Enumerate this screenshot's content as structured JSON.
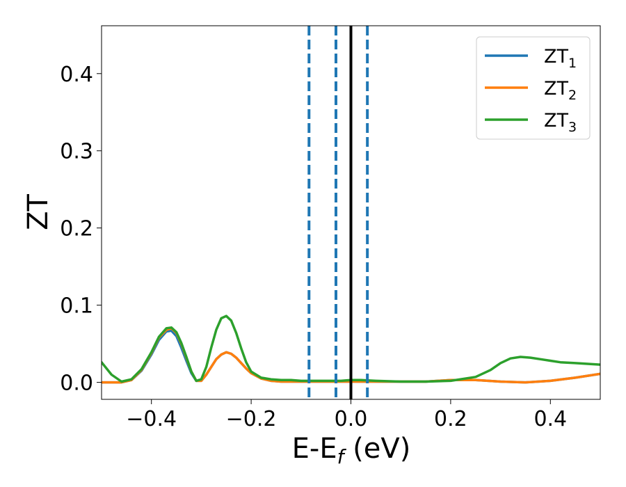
{
  "chart_data": {
    "type": "line",
    "title": "",
    "xlabel": {
      "main": "E-E",
      "sub": "f",
      "rest": " (eV)"
    },
    "ylabel": "ZT",
    "xlim": [
      -0.5,
      0.5
    ],
    "ylim": [
      -0.022,
      0.462
    ],
    "xticks": [
      {
        "value": -0.4,
        "label": "−0.4"
      },
      {
        "value": -0.2,
        "label": "−0.2"
      },
      {
        "value": 0.0,
        "label": "0.0"
      },
      {
        "value": 0.2,
        "label": "0.2"
      },
      {
        "value": 0.4,
        "label": "0.4"
      }
    ],
    "yticks": [
      {
        "value": 0.0,
        "label": "0.0"
      },
      {
        "value": 0.1,
        "label": "0.1"
      },
      {
        "value": 0.2,
        "label": "0.2"
      },
      {
        "value": 0.3,
        "label": "0.3"
      },
      {
        "value": 0.4,
        "label": "0.4"
      }
    ],
    "grid": false,
    "legend_position": "top-right",
    "vlines": [
      {
        "x": -0.084,
        "style": "dashed",
        "color": "#1f77b4"
      },
      {
        "x": -0.03,
        "style": "dashed",
        "color": "#1f77b4"
      },
      {
        "x": 0.0,
        "style": "solid",
        "color": "#000000"
      },
      {
        "x": 0.033,
        "style": "dashed",
        "color": "#1f77b4"
      }
    ],
    "series": [
      {
        "name": "ZT",
        "sub": "1",
        "color": "#1f77b4",
        "x": [
          -0.5,
          -0.48,
          -0.46,
          -0.44,
          -0.42,
          -0.4,
          -0.385,
          -0.37,
          -0.36,
          -0.35,
          -0.34,
          -0.33,
          -0.32,
          -0.31,
          -0.3,
          -0.29,
          -0.28,
          -0.27,
          -0.26,
          -0.25,
          -0.24,
          -0.23,
          -0.22,
          -0.21,
          -0.2,
          -0.18,
          -0.16,
          -0.14,
          -0.12,
          -0.1,
          -0.08,
          -0.06,
          -0.04,
          -0.02,
          0.0,
          0.05,
          0.1,
          0.15,
          0.2,
          0.25,
          0.3,
          0.35,
          0.4,
          0.45,
          0.5
        ],
        "y": [
          0.0,
          0.0,
          0.0,
          0.003,
          0.015,
          0.036,
          0.055,
          0.066,
          0.067,
          0.06,
          0.045,
          0.028,
          0.012,
          0.002,
          0.002,
          0.01,
          0.02,
          0.03,
          0.036,
          0.039,
          0.037,
          0.032,
          0.025,
          0.018,
          0.012,
          0.005,
          0.002,
          0.001,
          0.001,
          0.001,
          0.001,
          0.001,
          0.001,
          0.001,
          0.001,
          0.001,
          0.001,
          0.001,
          0.003,
          0.003,
          0.001,
          0.0,
          0.002,
          0.006,
          0.011
        ]
      },
      {
        "name": "ZT",
        "sub": "2",
        "color": "#ff7f0e",
        "x": [
          -0.5,
          -0.48,
          -0.46,
          -0.44,
          -0.42,
          -0.4,
          -0.385,
          -0.37,
          -0.36,
          -0.35,
          -0.34,
          -0.33,
          -0.32,
          -0.31,
          -0.3,
          -0.29,
          -0.28,
          -0.27,
          -0.26,
          -0.25,
          -0.24,
          -0.23,
          -0.22,
          -0.21,
          -0.2,
          -0.18,
          -0.16,
          -0.14,
          -0.12,
          -0.1,
          -0.08,
          -0.06,
          -0.04,
          -0.02,
          0.0,
          0.05,
          0.1,
          0.15,
          0.2,
          0.25,
          0.3,
          0.35,
          0.4,
          0.45,
          0.5
        ],
        "y": [
          0.0,
          0.0,
          0.0,
          0.003,
          0.016,
          0.038,
          0.058,
          0.068,
          0.07,
          0.064,
          0.05,
          0.032,
          0.014,
          0.002,
          0.002,
          0.01,
          0.02,
          0.03,
          0.036,
          0.039,
          0.037,
          0.032,
          0.025,
          0.018,
          0.012,
          0.005,
          0.002,
          0.001,
          0.001,
          0.001,
          0.001,
          0.001,
          0.001,
          0.001,
          0.001,
          0.001,
          0.001,
          0.001,
          0.003,
          0.003,
          0.001,
          0.0,
          0.002,
          0.006,
          0.011
        ]
      },
      {
        "name": "ZT",
        "sub": "3",
        "color": "#2ca02c",
        "x": [
          -0.5,
          -0.48,
          -0.46,
          -0.44,
          -0.42,
          -0.4,
          -0.385,
          -0.37,
          -0.36,
          -0.35,
          -0.34,
          -0.33,
          -0.32,
          -0.31,
          -0.3,
          -0.29,
          -0.28,
          -0.27,
          -0.26,
          -0.25,
          -0.24,
          -0.23,
          -0.22,
          -0.21,
          -0.2,
          -0.18,
          -0.16,
          -0.14,
          -0.12,
          -0.1,
          -0.08,
          -0.06,
          -0.04,
          -0.02,
          0.0,
          0.02,
          0.05,
          0.1,
          0.15,
          0.2,
          0.25,
          0.28,
          0.3,
          0.32,
          0.34,
          0.36,
          0.38,
          0.4,
          0.42,
          0.45,
          0.5
        ],
        "y": [
          0.026,
          0.01,
          0.001,
          0.004,
          0.017,
          0.039,
          0.059,
          0.07,
          0.071,
          0.065,
          0.051,
          0.033,
          0.014,
          0.002,
          0.004,
          0.02,
          0.045,
          0.068,
          0.083,
          0.086,
          0.08,
          0.064,
          0.044,
          0.026,
          0.014,
          0.006,
          0.004,
          0.003,
          0.003,
          0.002,
          0.002,
          0.002,
          0.002,
          0.002,
          0.003,
          0.003,
          0.002,
          0.001,
          0.001,
          0.002,
          0.007,
          0.016,
          0.025,
          0.031,
          0.033,
          0.032,
          0.03,
          0.028,
          0.026,
          0.025,
          0.023
        ]
      }
    ]
  }
}
